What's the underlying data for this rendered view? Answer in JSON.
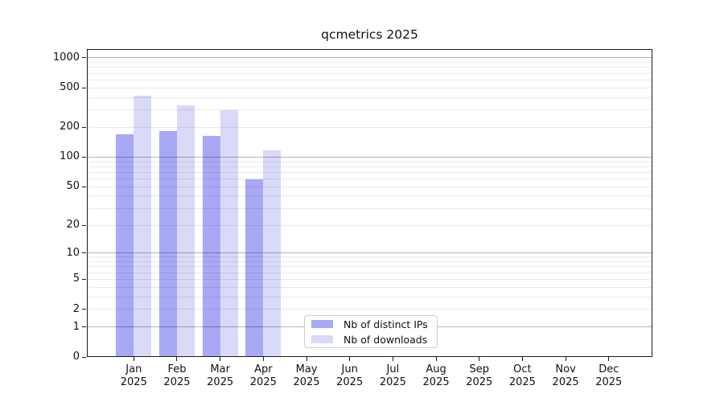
{
  "title": "qcmetrics 2025",
  "chart_data": {
    "type": "bar",
    "title": "qcmetrics 2025",
    "y_scale": "log1p",
    "ylim": [
      0,
      1224
    ],
    "y_ticks": [
      1000,
      500,
      200,
      100,
      50,
      20,
      10,
      5,
      2,
      1,
      0
    ],
    "x_months": [
      "Jan",
      "Feb",
      "Mar",
      "Apr",
      "May",
      "Jun",
      "Jul",
      "Aug",
      "Sep",
      "Oct",
      "Nov",
      "Dec"
    ],
    "x_year": "2025",
    "categories": [
      "Jan 2025",
      "Feb 2025",
      "Mar 2025",
      "Apr 2025",
      "May 2025",
      "Jun 2025",
      "Jul 2025",
      "Aug 2025",
      "Sep 2025",
      "Oct 2025",
      "Nov 2025",
      "Dec 2025"
    ],
    "series": [
      {
        "name": "Nb of distinct IPs",
        "color": "#a8a8f5",
        "values": [
          170,
          185,
          165,
          60,
          0,
          0,
          0,
          0,
          0,
          0,
          0,
          0
        ]
      },
      {
        "name": "Nb of downloads",
        "color": "#d9d9f8",
        "values": [
          420,
          330,
          300,
          118,
          0,
          0,
          0,
          0,
          0,
          0,
          0,
          0
        ]
      }
    ],
    "grid": "horizontal log minor+major, drawn over bars",
    "legend_position": "bottom-center"
  }
}
